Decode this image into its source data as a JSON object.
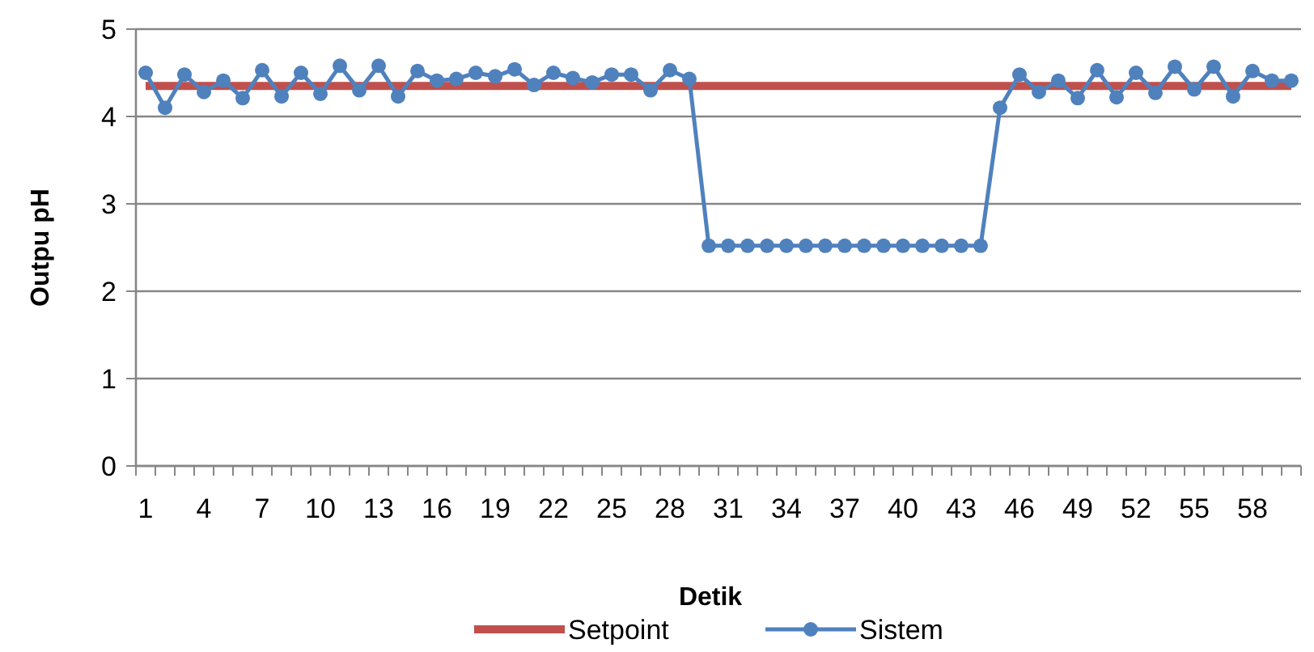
{
  "chart_data": {
    "type": "line",
    "xlabel": "Detik",
    "ylabel": "Outpu pH",
    "categories": [
      "1",
      null,
      null,
      "4",
      null,
      null,
      "7",
      null,
      null,
      "10",
      null,
      null,
      "13",
      null,
      null,
      "16",
      null,
      null,
      "19",
      null,
      null,
      "22",
      null,
      null,
      "25",
      null,
      null,
      "28",
      null,
      null,
      "31",
      null,
      null,
      "34",
      null,
      null,
      "37",
      null,
      null,
      "40",
      null,
      null,
      "43",
      null,
      null,
      "46",
      null,
      null,
      "49",
      null,
      null,
      "52",
      null,
      null,
      "55",
      null,
      null,
      "58",
      null,
      null
    ],
    "ylim": [
      0,
      5
    ],
    "yticks": [
      0,
      1,
      2,
      3,
      4,
      5
    ],
    "grid": "y",
    "legend": "bottom",
    "series": [
      {
        "name": "Setpoint",
        "color": "#c0504d",
        "marker": "none",
        "values": [
          4.35,
          4.35,
          4.35,
          4.35,
          4.35,
          4.35,
          4.35,
          4.35,
          4.35,
          4.35,
          4.35,
          4.35,
          4.35,
          4.35,
          4.35,
          4.35,
          4.35,
          4.35,
          4.35,
          4.35,
          4.35,
          4.35,
          4.35,
          4.35,
          4.35,
          4.35,
          4.35,
          4.35,
          4.35,
          4.35,
          4.35,
          4.35,
          4.35,
          4.35,
          4.35,
          4.35,
          4.35,
          4.35,
          4.35,
          4.35,
          4.35,
          4.35,
          4.35,
          4.35,
          4.35,
          4.35,
          4.35,
          4.35,
          4.35,
          4.35,
          4.35,
          4.35,
          4.35,
          4.35,
          4.35,
          4.35,
          4.35,
          4.35,
          4.35,
          4.35
        ]
      },
      {
        "name": "Sistem",
        "color": "#4f81bd",
        "marker": "circle",
        "values": [
          4.5,
          4.1,
          4.48,
          4.28,
          4.41,
          4.21,
          4.53,
          4.23,
          4.5,
          4.26,
          4.58,
          4.3,
          4.58,
          4.23,
          4.52,
          4.41,
          4.43,
          4.5,
          4.46,
          4.54,
          4.36,
          4.5,
          4.44,
          4.39,
          4.48,
          4.48,
          4.3,
          4.53,
          4.43,
          2.52,
          2.52,
          2.52,
          2.52,
          2.52,
          2.52,
          2.52,
          2.52,
          2.52,
          2.52,
          2.52,
          2.52,
          2.52,
          2.52,
          2.52,
          4.1,
          4.48,
          4.28,
          4.41,
          4.21,
          4.53,
          4.22,
          4.5,
          4.27,
          4.57,
          4.31,
          4.57,
          4.23,
          4.52,
          4.41,
          4.41
        ]
      }
    ]
  }
}
